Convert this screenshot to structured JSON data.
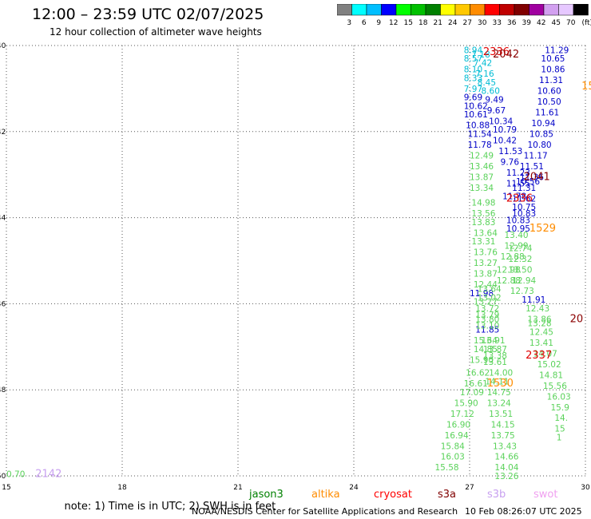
{
  "header": {
    "title": "12:00 – 23:59 UTC 02/07/2025",
    "subtitle": "12 hour collection of altimeter wave heights"
  },
  "colorbar": {
    "swatches": [
      "#808080",
      "#00ffff",
      "#00bfff",
      "#0000ff",
      "#00ff00",
      "#00c000",
      "#008000",
      "#ffff00",
      "#ffc800",
      "#ff8c00",
      "#ff0000",
      "#c00000",
      "#800000",
      "#a000a0",
      "#d2a0f0",
      "#e6c8ff",
      "#000000"
    ],
    "labels": [
      "3",
      "6",
      "9",
      "12",
      "15",
      "18",
      "21",
      "24",
      "27",
      "30",
      "33",
      "36",
      "39",
      "42",
      "45",
      "70",
      "(ft)"
    ]
  },
  "footer": {
    "note": "note: 1) Time is in UTC; 2) SWH is in feet",
    "satellites": [
      {
        "name": "jason3",
        "color": "#008000"
      },
      {
        "name": "altika",
        "color": "#ff8c00"
      },
      {
        "name": "cryosat",
        "color": "#ff0000"
      },
      {
        "name": "s3a",
        "color": "#800000"
      },
      {
        "name": "s3b",
        "color": "#c8a0f0"
      },
      {
        "name": "swot",
        "color": "#f0a0f0"
      }
    ],
    "credit": "NOAA/NESDIS Center for Satellite Applications and Research",
    "generated": "10 Feb 08:26:07 UTC 2025"
  },
  "chart_data": {
    "type": "scatter",
    "title": "12 hour collection of altimeter wave heights",
    "xlabel": "",
    "ylabel": "",
    "xlim": [
      15,
      30
    ],
    "ylim": [
      -50,
      -40
    ],
    "x_ticks": [
      "15",
      "18",
      "21",
      "24",
      "27",
      "30"
    ],
    "y_ticks": [
      "-40",
      "-42",
      "-44",
      "-46",
      "-48",
      "-50"
    ],
    "grid": true,
    "series": [
      {
        "name": "pass-a",
        "color": "#00bcd4",
        "points": [
          {
            "x": 26.85,
            "y": -40.1,
            "label": "8.94"
          },
          {
            "x": 26.85,
            "y": -40.3,
            "label": "8.57"
          },
          {
            "x": 26.85,
            "y": -40.55,
            "label": "8.10"
          },
          {
            "x": 26.85,
            "y": -40.75,
            "label": "8.33"
          },
          {
            "x": 26.85,
            "y": -41.0,
            "label": "7.97"
          },
          {
            "x": 27.05,
            "y": -40.2,
            "label": "7.18"
          },
          {
            "x": 27.1,
            "y": -40.4,
            "label": "7.42"
          },
          {
            "x": 27.15,
            "y": -40.65,
            "label": "7.16"
          },
          {
            "x": 27.2,
            "y": -40.85,
            "label": "8.45"
          },
          {
            "x": 27.3,
            "y": -41.05,
            "label": "8.60"
          }
        ]
      },
      {
        "name": "pass-b",
        "color": "#0000c8",
        "points": [
          {
            "x": 26.85,
            "y": -41.2,
            "label": "9.69"
          },
          {
            "x": 26.85,
            "y": -41.4,
            "label": "10.62"
          },
          {
            "x": 26.85,
            "y": -41.6,
            "label": "10.61"
          },
          {
            "x": 26.9,
            "y": -41.85,
            "label": "10.88"
          },
          {
            "x": 26.95,
            "y": -42.05,
            "label": "11.54"
          },
          {
            "x": 26.95,
            "y": -42.3,
            "label": "11.78"
          },
          {
            "x": 27.4,
            "y": -41.25,
            "label": "9.49"
          },
          {
            "x": 27.45,
            "y": -41.5,
            "label": "9.67"
          },
          {
            "x": 27.5,
            "y": -41.75,
            "label": "10.34"
          },
          {
            "x": 27.6,
            "y": -41.95,
            "label": "10.79"
          },
          {
            "x": 27.6,
            "y": -42.2,
            "label": "10.42"
          },
          {
            "x": 27.75,
            "y": -42.45,
            "label": "11.53"
          },
          {
            "x": 27.8,
            "y": -42.7,
            "label": "9.76"
          },
          {
            "x": 27.95,
            "y": -42.95,
            "label": "11.23"
          },
          {
            "x": 27.95,
            "y": -43.2,
            "label": "11.55"
          },
          {
            "x": 28.1,
            "y": -43.3,
            "label": "11.31"
          },
          {
            "x": 27.85,
            "y": -43.5,
            "label": "11.78"
          },
          {
            "x": 28.1,
            "y": -43.55,
            "label": "11.62"
          },
          {
            "x": 28.1,
            "y": -43.75,
            "label": "10.75"
          },
          {
            "x": 28.1,
            "y": -43.9,
            "label": "10.83"
          },
          {
            "x": 27.95,
            "y": -44.05,
            "label": "10.83"
          },
          {
            "x": 27.95,
            "y": -44.25,
            "label": "10.95"
          },
          {
            "x": 28.95,
            "y": -40.1,
            "label": "11.29"
          },
          {
            "x": 28.85,
            "y": -40.3,
            "label": "10.65"
          },
          {
            "x": 28.85,
            "y": -40.55,
            "label": "10.86"
          },
          {
            "x": 28.8,
            "y": -40.8,
            "label": "11.31"
          },
          {
            "x": 28.75,
            "y": -41.05,
            "label": "10.60"
          },
          {
            "x": 28.75,
            "y": -41.3,
            "label": "10.50"
          },
          {
            "x": 28.7,
            "y": -41.55,
            "label": "11.61"
          },
          {
            "x": 28.6,
            "y": -41.8,
            "label": "10.94"
          },
          {
            "x": 28.55,
            "y": -42.05,
            "label": "10.85"
          },
          {
            "x": 28.5,
            "y": -42.3,
            "label": "10.80"
          },
          {
            "x": 28.4,
            "y": -42.55,
            "label": "11.17"
          },
          {
            "x": 28.3,
            "y": -42.8,
            "label": "11.51"
          },
          {
            "x": 28.3,
            "y": -43.05,
            "label": "11.36"
          },
          {
            "x": 28.2,
            "y": -43.15,
            "label": "10.56"
          },
          {
            "x": 27.0,
            "y": -45.75,
            "label": "11.98"
          },
          {
            "x": 28.35,
            "y": -45.9,
            "label": "11.91"
          },
          {
            "x": 27.15,
            "y": -46.6,
            "label": "11.85"
          }
        ]
      },
      {
        "name": "pass-c",
        "color": "#5ad25a",
        "points": [
          {
            "x": 27.0,
            "y": -42.55,
            "label": "12.49"
          },
          {
            "x": 27.0,
            "y": -42.8,
            "label": "13.46"
          },
          {
            "x": 27.0,
            "y": -43.05,
            "label": "13.87"
          },
          {
            "x": 27.0,
            "y": -43.3,
            "label": "13.34"
          },
          {
            "x": 27.05,
            "y": -43.65,
            "label": "14.98"
          },
          {
            "x": 27.05,
            "y": -43.9,
            "label": "13.56"
          },
          {
            "x": 27.05,
            "y": -44.1,
            "label": "13.83"
          },
          {
            "x": 27.1,
            "y": -44.35,
            "label": "13.64"
          },
          {
            "x": 27.05,
            "y": -44.55,
            "label": "13.31"
          },
          {
            "x": 27.1,
            "y": -44.8,
            "label": "13.76"
          },
          {
            "x": 27.1,
            "y": -45.05,
            "label": "13.27"
          },
          {
            "x": 27.1,
            "y": -45.3,
            "label": "13.87"
          },
          {
            "x": 27.1,
            "y": -45.55,
            "label": "12.44"
          },
          {
            "x": 27.2,
            "y": -45.65,
            "label": "13.64"
          },
          {
            "x": 27.2,
            "y": -45.85,
            "label": "13.02"
          },
          {
            "x": 27.1,
            "y": -45.95,
            "label": "13.27"
          },
          {
            "x": 27.15,
            "y": -46.1,
            "label": "13.72"
          },
          {
            "x": 27.15,
            "y": -46.25,
            "label": "13.79"
          },
          {
            "x": 27.15,
            "y": -46.35,
            "label": "13.80"
          },
          {
            "x": 27.15,
            "y": -46.5,
            "label": "13.10"
          },
          {
            "x": 27.1,
            "y": -46.85,
            "label": "15.64"
          },
          {
            "x": 27.3,
            "y": -46.85,
            "label": "13.91"
          },
          {
            "x": 27.1,
            "y": -47.05,
            "label": "14.85"
          },
          {
            "x": 27.35,
            "y": -47.05,
            "label": "13.87"
          },
          {
            "x": 27.35,
            "y": -47.2,
            "label": "13.38"
          },
          {
            "x": 27.35,
            "y": -47.35,
            "label": "13.61"
          },
          {
            "x": 27.0,
            "y": -47.3,
            "label": "15.90"
          },
          {
            "x": 27.5,
            "y": -47.6,
            "label": "14.00"
          },
          {
            "x": 26.9,
            "y": -47.6,
            "label": "16.62"
          },
          {
            "x": 27.4,
            "y": -47.8,
            "label": "14.11"
          },
          {
            "x": 26.85,
            "y": -47.85,
            "label": "16.61"
          },
          {
            "x": 27.45,
            "y": -48.05,
            "label": "14.75"
          },
          {
            "x": 26.75,
            "y": -48.05,
            "label": "17.09"
          },
          {
            "x": 27.45,
            "y": -48.3,
            "label": "13.24"
          },
          {
            "x": 26.6,
            "y": -48.3,
            "label": "15.90"
          },
          {
            "x": 27.5,
            "y": -48.55,
            "label": "13.51"
          },
          {
            "x": 26.5,
            "y": -48.55,
            "label": "17.12"
          },
          {
            "x": 27.55,
            "y": -48.8,
            "label": "14.15"
          },
          {
            "x": 26.4,
            "y": -48.8,
            "label": "16.90"
          },
          {
            "x": 27.55,
            "y": -49.05,
            "label": "13.75"
          },
          {
            "x": 26.35,
            "y": -49.05,
            "label": "16.94"
          },
          {
            "x": 27.6,
            "y": -49.3,
            "label": "13.43"
          },
          {
            "x": 26.25,
            "y": -49.3,
            "label": "15.84"
          },
          {
            "x": 27.65,
            "y": -49.55,
            "label": "14.66"
          },
          {
            "x": 26.25,
            "y": -49.55,
            "label": "16.03"
          },
          {
            "x": 27.65,
            "y": -49.8,
            "label": "14.04"
          },
          {
            "x": 26.1,
            "y": -49.8,
            "label": "15.58"
          },
          {
            "x": 27.65,
            "y": -50.0,
            "label": "13.26"
          },
          {
            "x": 27.9,
            "y": -44.4,
            "label": "13.40"
          },
          {
            "x": 27.9,
            "y": -44.65,
            "label": "12.99"
          },
          {
            "x": 28.0,
            "y": -44.7,
            "label": "12.74"
          },
          {
            "x": 27.8,
            "y": -44.9,
            "label": "12.88"
          },
          {
            "x": 28.0,
            "y": -44.95,
            "label": "12.32"
          },
          {
            "x": 27.7,
            "y": -45.2,
            "label": "12.98"
          },
          {
            "x": 28.0,
            "y": -45.2,
            "label": "13.50"
          },
          {
            "x": 27.7,
            "y": -45.45,
            "label": "12.88"
          },
          {
            "x": 28.1,
            "y": -45.45,
            "label": "12.94"
          },
          {
            "x": 28.05,
            "y": -45.7,
            "label": "12.73"
          },
          {
            "x": 28.45,
            "y": -46.1,
            "label": "12.43"
          },
          {
            "x": 28.5,
            "y": -46.35,
            "label": "13.86"
          },
          {
            "x": 28.5,
            "y": -46.45,
            "label": "13.28"
          },
          {
            "x": 28.55,
            "y": -46.65,
            "label": "12.45"
          },
          {
            "x": 28.55,
            "y": -46.9,
            "label": "13.41"
          },
          {
            "x": 28.65,
            "y": -47.15,
            "label": "14.07"
          },
          {
            "x": 28.75,
            "y": -47.4,
            "label": "15.02"
          },
          {
            "x": 28.8,
            "y": -47.65,
            "label": "14.81"
          },
          {
            "x": 28.9,
            "y": -47.9,
            "label": "15.56"
          },
          {
            "x": 29.0,
            "y": -48.15,
            "label": "16.03"
          },
          {
            "x": 29.1,
            "y": -48.4,
            "label": "15.9"
          },
          {
            "x": 29.2,
            "y": -48.65,
            "label": "14."
          },
          {
            "x": 29.2,
            "y": -48.9,
            "label": "15"
          },
          {
            "x": 29.25,
            "y": -49.1,
            "label": "1"
          },
          {
            "x": 15.0,
            "y": -49.95,
            "label": "0.70"
          }
        ]
      },
      {
        "name": "swot-time",
        "color": "#c8a0f0",
        "points": [
          {
            "x": 15.75,
            "y": -49.95,
            "label": "2142"
          }
        ]
      },
      {
        "name": "time-labels",
        "color": "#e00000",
        "points": [
          {
            "x": 27.35,
            "y": -40.15,
            "label": "2336"
          },
          {
            "x": 27.95,
            "y": -43.55,
            "label": "2336"
          },
          {
            "x": 28.45,
            "y": -47.2,
            "label": "2337"
          }
        ]
      },
      {
        "name": "time-labels-dark",
        "color": "#8b0000",
        "points": [
          {
            "x": 27.6,
            "y": -40.2,
            "label": "2042"
          },
          {
            "x": 28.4,
            "y": -43.05,
            "label": "2041"
          },
          {
            "x": 29.6,
            "y": -46.35,
            "label": "20"
          }
        ]
      },
      {
        "name": "time-labels-orange",
        "color": "#ff8c00",
        "points": [
          {
            "x": 28.55,
            "y": -44.25,
            "label": "1529"
          },
          {
            "x": 27.45,
            "y": -47.85,
            "label": "1530"
          },
          {
            "x": 29.9,
            "y": -40.95,
            "label": "15"
          }
        ]
      }
    ]
  }
}
